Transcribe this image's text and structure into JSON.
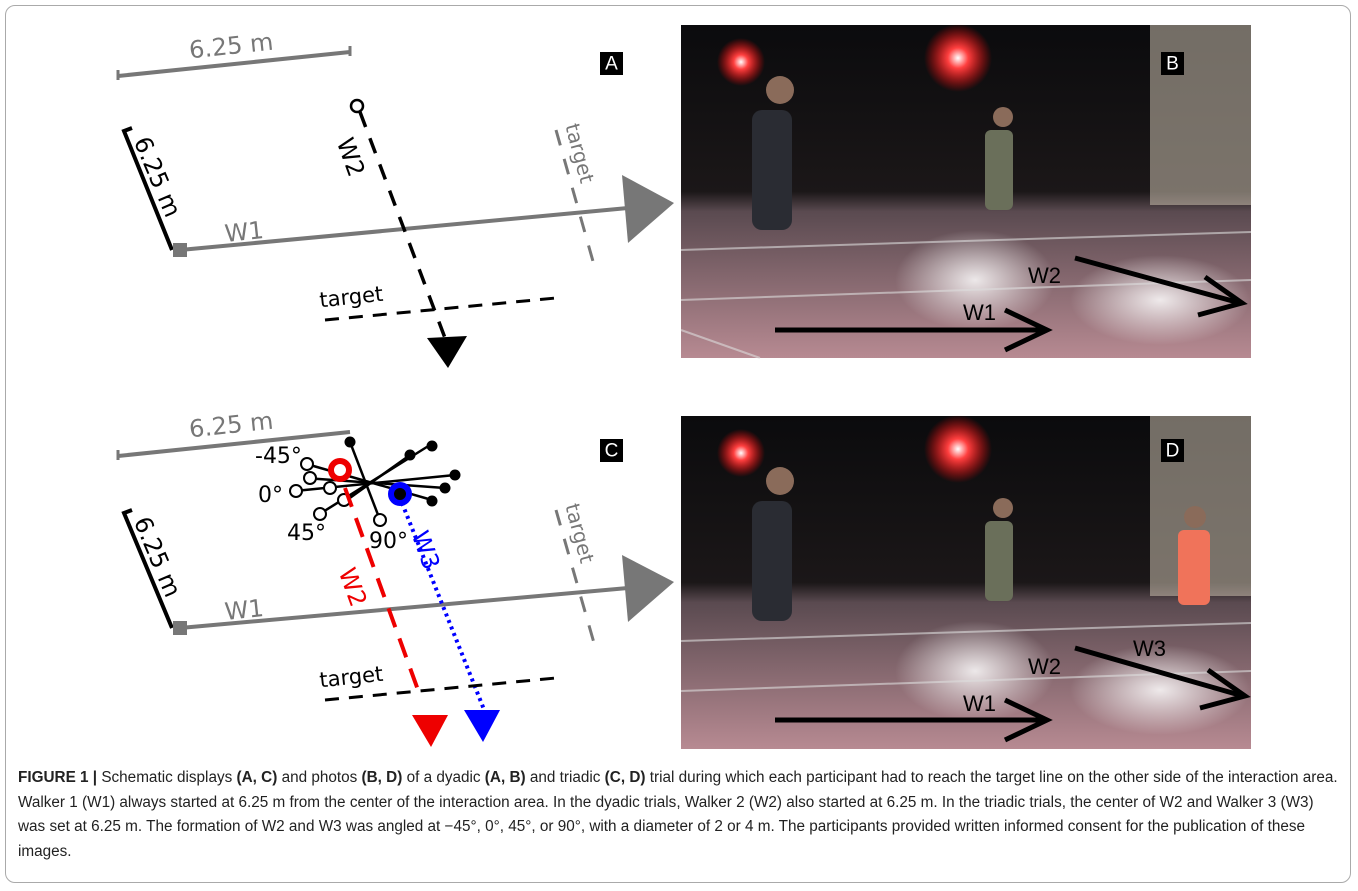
{
  "panels": [
    {
      "letter": "A",
      "top_length": "6.25 m",
      "side_length": "6.25 m",
      "walker1": "W1",
      "walker2": "W2",
      "target_right": "target",
      "target_bottom": "target"
    },
    {
      "letter": "B",
      "walker1": "W1",
      "walker2": "W2"
    },
    {
      "letter": "C",
      "top_length": "6.25 m",
      "side_length": "6.25 m",
      "walker1": "W1",
      "walker2": "W2",
      "walker3": "W3",
      "target_right": "target",
      "target_bottom": "target",
      "angles": [
        "-45°",
        "0°",
        "45°",
        "90°"
      ]
    },
    {
      "letter": "D",
      "walker1": "W1",
      "walker2": "W2",
      "walker3": "W3"
    }
  ],
  "caption": {
    "label": "FIGURE 1 |",
    "parts": [
      "Schematic displays",
      "(A, C)",
      "and photos",
      "(B, D)",
      "of a dyadic",
      "(A, B)",
      "and triadic",
      "(C, D)",
      "trial during which each participant had to reach the target line on the other side of the interaction area. Walker 1 (W1) always started at 6.25 m from the center of the interaction area. In the dyadic trials, Walker 2 (W2) also started at 6.25 m. In the triadic trials, the center of W2 and Walker 3 (W3) was set at 6.25 m. The formation of W2 and W3 was angled at −45°, 0°, 45°, or 90°, with a diameter of 2 or 4 m. The participants provided written informed consent for the publication of these images."
    ]
  }
}
